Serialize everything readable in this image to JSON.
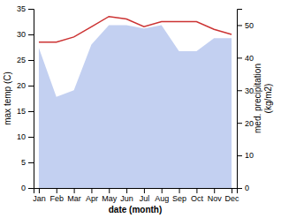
{
  "chart_data": {
    "type": "line",
    "categories": [
      "Jan",
      "Feb",
      "Mar",
      "Apr",
      "May",
      "Jun",
      "Jul",
      "Aug",
      "Sep",
      "Oct",
      "Nov",
      "Dec"
    ],
    "series": [
      {
        "type": "area",
        "axis": "y2",
        "color": "#b8c8ee",
        "values": [
          43,
          28,
          30,
          44,
          50,
          50,
          49,
          50,
          42,
          42,
          46,
          46
        ]
      },
      {
        "type": "line",
        "color": "#cc3333",
        "values": [
          28.5,
          28.5,
          29.5,
          31.5,
          33.5,
          33.0,
          31.5,
          32.5,
          32.5,
          32.5,
          31.0,
          30.0
        ]
      }
    ],
    "xlabel": "date (month)",
    "ylabel": "max temp (C)",
    "y2label": "med. precipitation\n(kg/m2)",
    "ylim": [
      0,
      35
    ],
    "yticks": [
      0,
      5,
      10,
      15,
      20,
      25,
      30,
      35
    ],
    "y2lim": [
      0,
      55
    ],
    "y2ticks": [
      0,
      10,
      20,
      30,
      40,
      50
    ],
    "grid": false
  }
}
